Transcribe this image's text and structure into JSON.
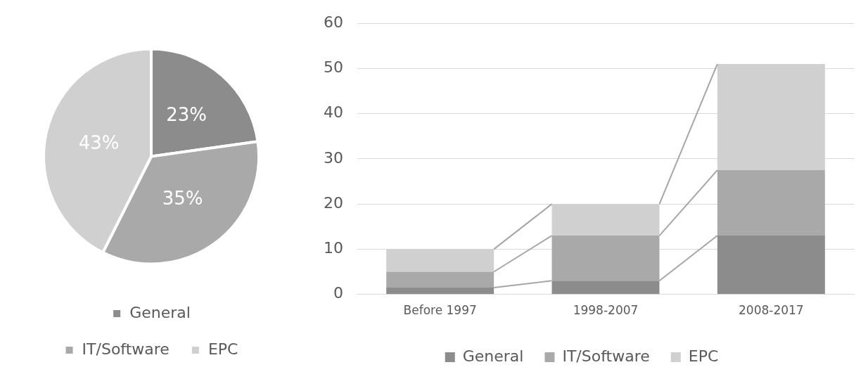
{
  "chart_data": [
    {
      "type": "pie",
      "categories": [
        "General",
        "IT/Software",
        "EPC"
      ],
      "values": [
        23,
        35,
        43
      ],
      "colors": [
        "#8c8c8c",
        "#a9a9a9",
        "#d0d0d0"
      ],
      "value_labels": [
        "23%",
        "35%",
        "43%"
      ],
      "legend": "bottom"
    },
    {
      "type": "bar",
      "stacked": true,
      "categories": [
        "Before 1997",
        "1998-2007",
        "2008-2017"
      ],
      "series": [
        {
          "name": "General",
          "color": "#8c8c8c",
          "values": [
            1.5,
            3,
            13
          ]
        },
        {
          "name": "IT/Software",
          "color": "#a9a9a9",
          "values": [
            3.5,
            10,
            14.5
          ]
        },
        {
          "name": "EPC",
          "color": "#d0d0d0",
          "values": [
            5,
            7,
            23.5
          ]
        }
      ],
      "ylim": [
        0,
        60
      ],
      "yticks": [
        0,
        10,
        20,
        30,
        40,
        50,
        60
      ],
      "grid": "y",
      "legend": "bottom"
    }
  ]
}
